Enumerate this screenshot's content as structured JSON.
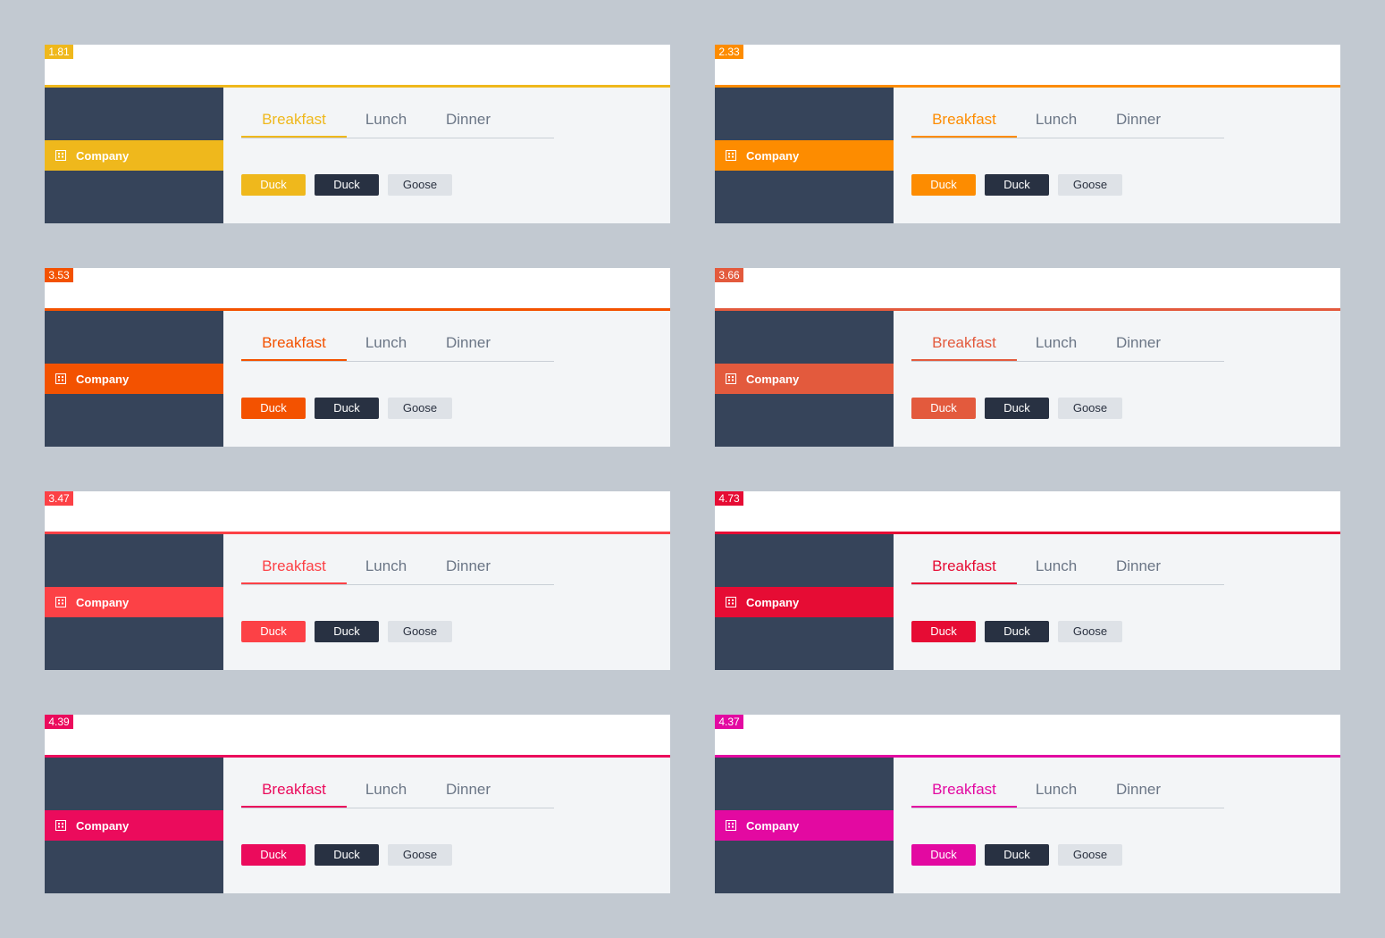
{
  "sidebar_item_label": "Company",
  "tabs": [
    "Breakfast",
    "Lunch",
    "Dinner"
  ],
  "buttons": {
    "primary": "Duck",
    "secondary": "Duck",
    "tertiary": "Goose"
  },
  "colors": {
    "page_background": "#c2c9d1",
    "sidebar": "#36445a",
    "content": "#f3f5f7",
    "dark_button": "#283142",
    "light_button": "#dee2e7"
  },
  "icons": {
    "sidebar_item": "building-icon"
  },
  "variants": [
    {
      "score": "1.81",
      "accent": "#efb81c"
    },
    {
      "score": "2.33",
      "accent": "#fd8c00"
    },
    {
      "score": "3.53",
      "accent": "#f35200"
    },
    {
      "score": "3.66",
      "accent": "#e35a3d"
    },
    {
      "score": "3.47",
      "accent": "#fc4146"
    },
    {
      "score": "4.73",
      "accent": "#e60c34"
    },
    {
      "score": "4.39",
      "accent": "#eb0b5c"
    },
    {
      "score": "4.37",
      "accent": "#e309a1"
    }
  ]
}
